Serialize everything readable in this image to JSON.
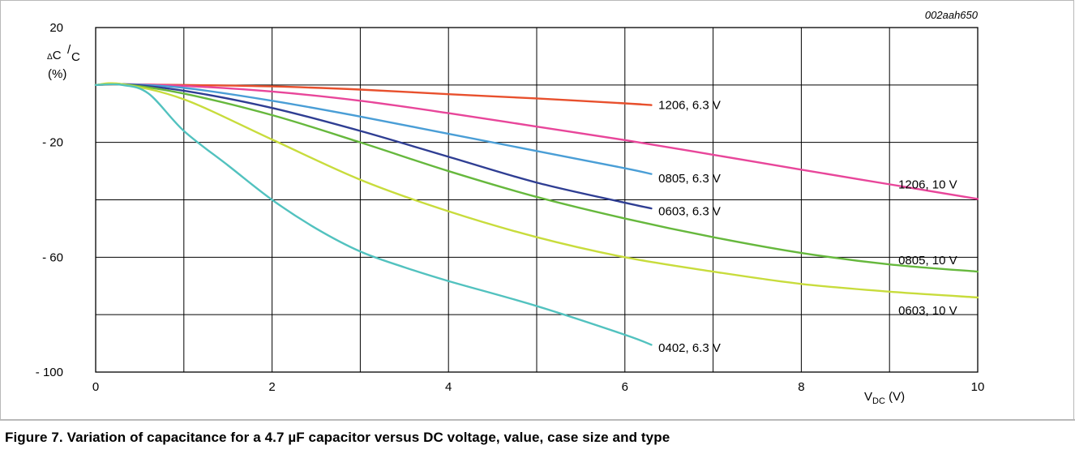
{
  "figure": {
    "caption": "Figure 7.  Variation of capacitance for a 4.7 µF capacitor versus DC voltage, value, case size and type",
    "code": "002aah650"
  },
  "chart_data": {
    "type": "line",
    "xlabel": {
      "main": "V",
      "sub": "DC",
      "unit": "(V)"
    },
    "ylabel": {
      "delta": "Δ",
      "num": "C",
      "den": "C",
      "unit": "(%)"
    },
    "xlim": [
      0,
      10
    ],
    "ylim": [
      -100,
      20
    ],
    "grid": true,
    "x_ticks": [
      {
        "v": 0,
        "label": "0"
      },
      {
        "v": 2,
        "label": "2"
      },
      {
        "v": 4,
        "label": "4"
      },
      {
        "v": 6,
        "label": "6"
      },
      {
        "v": 8,
        "label": "8"
      },
      {
        "v": 10,
        "label": "10"
      }
    ],
    "y_ticks": [
      {
        "v": 20,
        "label": "20"
      },
      {
        "v": -20,
        "label": "- 20"
      },
      {
        "v": -60,
        "label": "- 60"
      },
      {
        "v": -100,
        "label": "- 100"
      }
    ],
    "series": [
      {
        "name": "1206, 6.3 V",
        "color": "#e8502d",
        "x": [
          0,
          0.3,
          1,
          2,
          3,
          4,
          5,
          6,
          6.3
        ],
        "y": [
          0,
          0.2,
          0,
          -0.5,
          -1.6,
          -3.2,
          -4.7,
          -6.4,
          -7
        ]
      },
      {
        "name": "1206, 10 V",
        "color": "#e8469a",
        "x": [
          0,
          0.3,
          1,
          2,
          3,
          4,
          5,
          6,
          7,
          8,
          9,
          10
        ],
        "y": [
          0,
          0.3,
          -0.3,
          -2.3,
          -5.5,
          -9.8,
          -14.5,
          -19.2,
          -24.3,
          -29.5,
          -34.6,
          -39.7
        ]
      },
      {
        "name": "0805, 6.3 V",
        "color": "#4a9ed6",
        "x": [
          0,
          0.3,
          1,
          2,
          3,
          4,
          5,
          6,
          6.3
        ],
        "y": [
          0,
          0.3,
          -1,
          -5.5,
          -11,
          -17,
          -23,
          -29,
          -31
        ]
      },
      {
        "name": "0603, 6.3 V",
        "color": "#2f3e93",
        "x": [
          0,
          0.3,
          1,
          2,
          3,
          4,
          5,
          6,
          6.3
        ],
        "y": [
          0,
          0.3,
          -2,
          -8,
          -16,
          -25,
          -34,
          -41,
          -43
        ]
      },
      {
        "name": "0805, 10 V",
        "color": "#66b83d",
        "x": [
          0,
          0.3,
          1,
          2,
          3,
          4,
          5,
          6,
          7,
          8,
          9,
          10
        ],
        "y": [
          0,
          0.3,
          -3,
          -10.5,
          -20,
          -30,
          -39,
          -46.5,
          -53,
          -58.5,
          -62.5,
          -65
        ]
      },
      {
        "name": "0603, 10 V",
        "color": "#c8dc3c",
        "x": [
          0,
          0.3,
          1,
          2,
          3,
          4,
          5,
          6,
          7,
          8,
          9,
          10
        ],
        "y": [
          0,
          0.3,
          -5,
          -19,
          -33,
          -44,
          -53,
          -60,
          -65,
          -69.3,
          -72,
          -74
        ]
      },
      {
        "name": "0402, 6.3 V",
        "color": "#52c2bf",
        "x": [
          0,
          0.3,
          0.6,
          1,
          1.5,
          2,
          2.5,
          3,
          3.5,
          4,
          5,
          6,
          6.3
        ],
        "y": [
          0,
          0,
          -3,
          -16,
          -28,
          -40,
          -50,
          -58,
          -63.5,
          -68.3,
          -77,
          -87,
          -90.5
        ]
      }
    ],
    "annotations": [
      {
        "series": 0,
        "text": "1206, 6.3 V",
        "x": 6.38,
        "y": -7
      },
      {
        "series": 1,
        "text": "1206, 10 V",
        "x": 9.1,
        "y": -34.6
      },
      {
        "series": 2,
        "text": "0805, 6.3 V",
        "x": 6.38,
        "y": -32.5
      },
      {
        "series": 3,
        "text": "0603, 6.3 V",
        "x": 6.38,
        "y": -44
      },
      {
        "series": 4,
        "text": "0805, 10 V",
        "x": 9.1,
        "y": -61
      },
      {
        "series": 5,
        "text": "0603, 10 V",
        "x": 9.1,
        "y": -78.5
      },
      {
        "series": 6,
        "text": "0402, 6.3 V",
        "x": 6.38,
        "y": -91.5
      }
    ]
  }
}
